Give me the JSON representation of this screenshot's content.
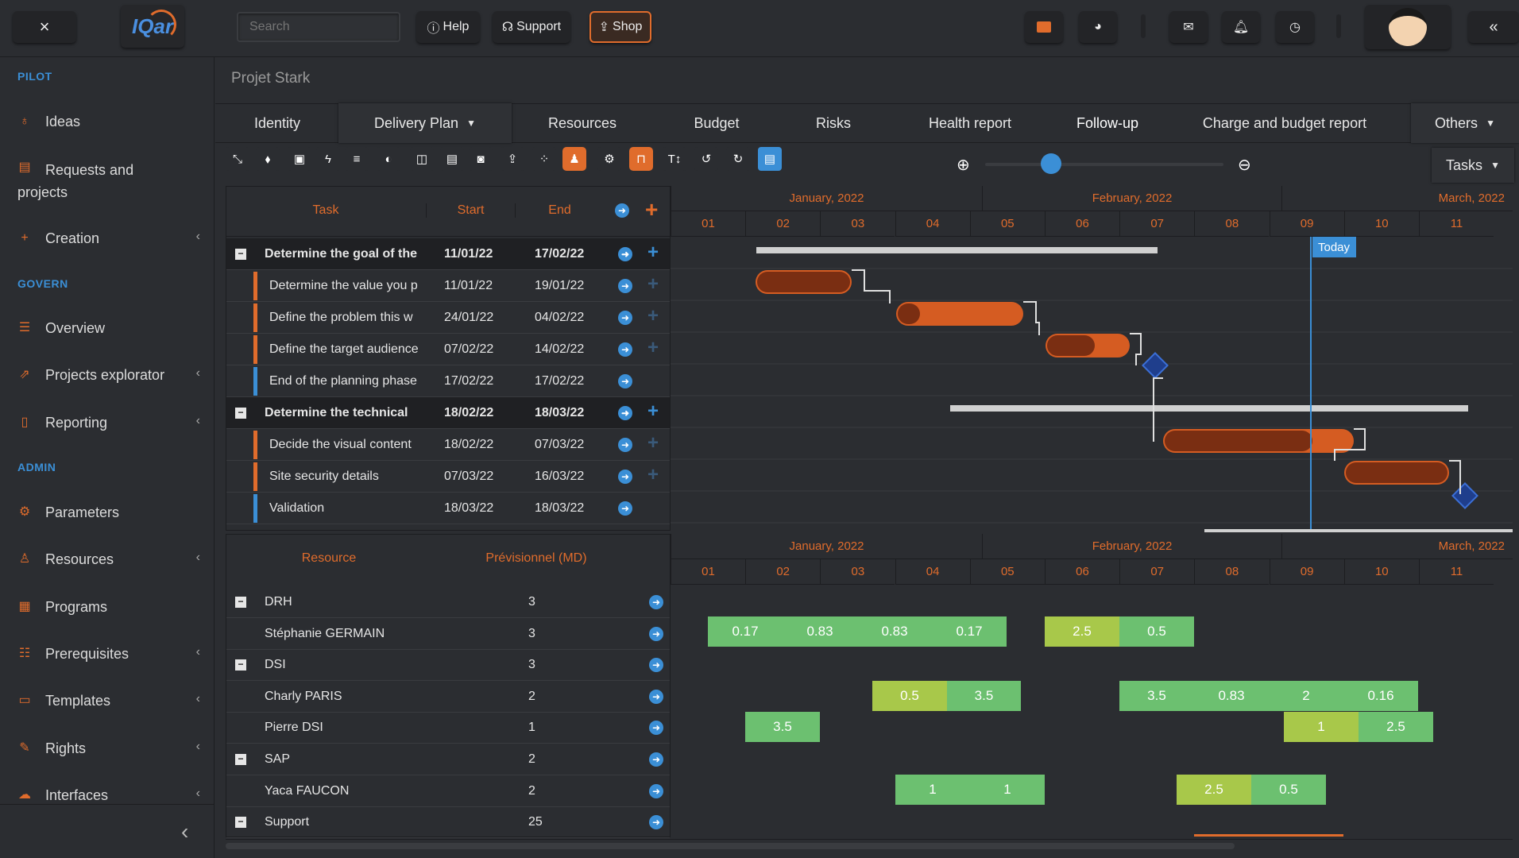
{
  "topbar": {
    "close": "×",
    "logo": "IQar",
    "search_placeholder": "Search",
    "help": "Help",
    "support": "Support",
    "shop": "Shop",
    "collapse": "«"
  },
  "sidebar": {
    "sections": [
      "PILOT",
      "GOVERN",
      "ADMIN"
    ],
    "pilot": [
      {
        "label": "Ideas",
        "icon": "lightbulb-icon"
      },
      {
        "label": "Requests and projects",
        "icon": "briefcase-icon"
      },
      {
        "label": "Creation",
        "icon": "plus-icon"
      }
    ],
    "govern": [
      {
        "label": "Overview",
        "icon": "list-icon"
      },
      {
        "label": "Projects explorator",
        "icon": "share-icon"
      },
      {
        "label": "Reporting",
        "icon": "clipboard-icon"
      }
    ],
    "admin": [
      {
        "label": "Parameters",
        "icon": "gear-icon"
      },
      {
        "label": "Resources",
        "icon": "user-icon"
      },
      {
        "label": "Programs",
        "icon": "grid-icon"
      },
      {
        "label": "Prerequisites",
        "icon": "list-icon"
      },
      {
        "label": "Templates",
        "icon": "file-icon"
      },
      {
        "label": "Rights",
        "icon": "edit-icon"
      },
      {
        "label": "Interfaces",
        "icon": "cloud-icon"
      }
    ]
  },
  "project": {
    "title": "Projet Stark"
  },
  "tabs": [
    "Identity",
    "Delivery Plan",
    "Resources",
    "Budget",
    "Risks",
    "Health report",
    "Follow-up",
    "Charge and budget report",
    "Others"
  ],
  "tasks_select": "Tasks",
  "task_grid": {
    "headers": {
      "task": "Task",
      "start": "Start",
      "end": "End"
    },
    "rows": [
      {
        "name": "Determine the goal of the",
        "start": "11/01/22",
        "end": "17/02/22",
        "group": true
      },
      {
        "name": "Determine the value you p",
        "start": "11/01/22",
        "end": "19/01/22",
        "group": false
      },
      {
        "name": "Define the problem this w",
        "start": "24/01/22",
        "end": "04/02/22",
        "group": false
      },
      {
        "name": "Define the target audience",
        "start": "07/02/22",
        "end": "14/02/22",
        "group": false
      },
      {
        "name": "End of the planning phase",
        "start": "17/02/22",
        "end": "17/02/22",
        "group": false,
        "milestone": true
      },
      {
        "name": "Determine the technical",
        "start": "18/02/22",
        "end": "18/03/22",
        "group": true
      },
      {
        "name": "Decide the visual content",
        "start": "18/02/22",
        "end": "07/03/22",
        "group": false
      },
      {
        "name": "Site security details",
        "start": "07/03/22",
        "end": "16/03/22",
        "group": false
      },
      {
        "name": "Validation",
        "start": "18/03/22",
        "end": "18/03/22",
        "group": false,
        "milestone": true
      }
    ]
  },
  "timeline": {
    "months": [
      "January, 2022",
      "February, 2022",
      "March, 2022"
    ],
    "weeks": [
      "01",
      "02",
      "03",
      "04",
      "05",
      "06",
      "07",
      "08",
      "09",
      "10",
      "11"
    ],
    "today": "Today"
  },
  "resource_grid": {
    "headers": {
      "resource": "Resource",
      "forecast": "Prévisionnel (MD)"
    },
    "rows": [
      {
        "name": "DRH",
        "value": "3",
        "group": true
      },
      {
        "name": "Stéphanie GERMAIN",
        "value": "3",
        "group": false
      },
      {
        "name": "DSI",
        "value": "3",
        "group": true
      },
      {
        "name": "Charly PARIS",
        "value": "2",
        "group": false
      },
      {
        "name": "Pierre DSI",
        "value": "1",
        "group": false
      },
      {
        "name": "SAP",
        "value": "2",
        "group": true
      },
      {
        "name": "Yaca FAUCON",
        "value": "2",
        "group": false
      },
      {
        "name": "Support",
        "value": "25",
        "group": true
      }
    ]
  },
  "loads": {
    "stephanie": [
      "0.17",
      "0.83",
      "0.83",
      "0.17",
      "2.5",
      "0.5"
    ],
    "charly": [
      "0.5",
      "3.5",
      "3.5",
      "0.83",
      "2",
      "0.16"
    ],
    "pierre": [
      "3.5",
      "1",
      "2.5"
    ],
    "yaca": [
      "1",
      "1",
      "2.5",
      "0.5"
    ]
  },
  "colors": {
    "accent": "#e06c2c",
    "blue": "#3b8fd6",
    "green": "#6cc070",
    "lime": "#a8c84a",
    "bar_dark": "#7a2e12",
    "milestone": "#1f3e8c"
  }
}
